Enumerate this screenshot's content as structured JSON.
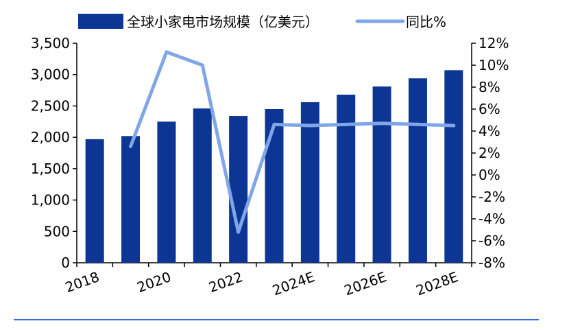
{
  "chart_data": {
    "type": "bar+line",
    "categories": [
      "2018",
      "2019",
      "2020",
      "2021",
      "2022",
      "2023",
      "2024E",
      "2025E",
      "2026E",
      "2027E",
      "2028E"
    ],
    "x_tick_labels": [
      "2018",
      "",
      "2020",
      "",
      "2022",
      "",
      "2024E",
      "",
      "2026E",
      "",
      "2028E"
    ],
    "series": [
      {
        "name": "全球小家电市场规模（亿美元）",
        "type": "bar",
        "axis": "left",
        "values": [
          1970,
          2020,
          2250,
          2460,
          2340,
          2450,
          2560,
          2680,
          2810,
          2940,
          3070
        ]
      },
      {
        "name": "同比%",
        "type": "line",
        "axis": "right",
        "values": [
          null,
          2.6,
          11.2,
          10.0,
          -5.2,
          4.6,
          4.5,
          4.6,
          4.7,
          4.6,
          4.5
        ]
      }
    ],
    "y_left": {
      "lim": [
        0,
        3500
      ],
      "ticks": [
        0,
        500,
        1000,
        1500,
        2000,
        2500,
        3000,
        3500
      ],
      "tick_labels": [
        "0",
        "500",
        "1,000",
        "1,500",
        "2,000",
        "2,500",
        "3,000",
        "3,500"
      ]
    },
    "y_right": {
      "lim": [
        -8,
        12
      ],
      "ticks": [
        -8,
        -6,
        -4,
        -2,
        0,
        2,
        4,
        6,
        8,
        10,
        12
      ],
      "tick_labels": [
        "-8%",
        "-6%",
        "-4%",
        "-2%",
        "0%",
        "2%",
        "4%",
        "6%",
        "8%",
        "10%",
        "12%"
      ]
    },
    "legend": "top",
    "grid": false,
    "colors": {
      "bar": "#0d3594",
      "line": "#7fa6e6",
      "rule": "#2f6fd6"
    }
  }
}
